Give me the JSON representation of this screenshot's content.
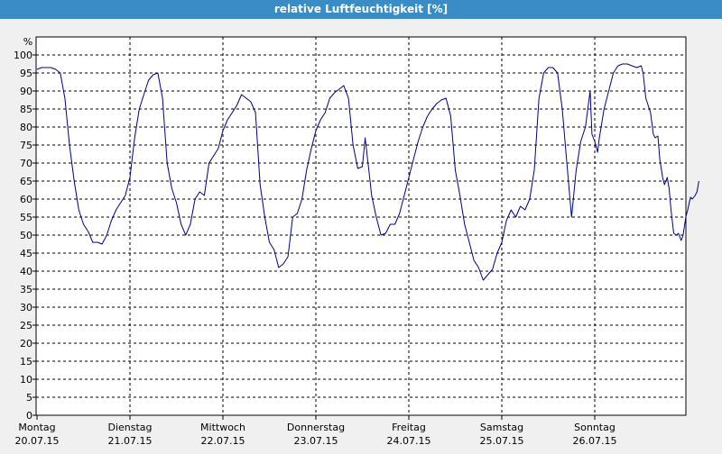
{
  "window": {
    "title": "relative Luftfeuchtigkeit [%]"
  },
  "chart_data": {
    "type": "line",
    "title": "relative Luftfeuchtigkeit [%]",
    "ylabel": "%",
    "xlabel": "",
    "ylim": [
      0,
      105
    ],
    "xlim": [
      0,
      7.05
    ],
    "yticks": [
      0,
      5,
      10,
      15,
      20,
      25,
      30,
      35,
      40,
      45,
      50,
      55,
      60,
      65,
      70,
      75,
      80,
      85,
      90,
      95,
      100
    ],
    "grid": true,
    "line_color": "#00008b",
    "day_ticks": [
      {
        "x": 0,
        "day": "Montag",
        "date": "20.07.15"
      },
      {
        "x": 1,
        "day": "Dienstag",
        "date": "21.07.15"
      },
      {
        "x": 2,
        "day": "Mittwoch",
        "date": "22.07.15"
      },
      {
        "x": 3,
        "day": "Donnerstag",
        "date": "23.07.15"
      },
      {
        "x": 4,
        "day": "Freitag",
        "date": "24.07.15"
      },
      {
        "x": 5,
        "day": "Samstag",
        "date": "25.07.15"
      },
      {
        "x": 6,
        "day": "Sonntag",
        "date": "26.07.15"
      }
    ],
    "series": [
      {
        "values": [
          [
            0.0,
            96
          ],
          [
            0.05,
            96.5
          ],
          [
            0.1,
            96.5
          ],
          [
            0.15,
            96.5
          ],
          [
            0.2,
            96
          ],
          [
            0.25,
            95
          ],
          [
            0.3,
            88
          ],
          [
            0.35,
            75
          ],
          [
            0.4,
            65
          ],
          [
            0.45,
            57
          ],
          [
            0.5,
            53
          ],
          [
            0.55,
            51
          ],
          [
            0.6,
            48
          ],
          [
            0.65,
            48
          ],
          [
            0.7,
            47.5
          ],
          [
            0.75,
            50
          ],
          [
            0.8,
            54
          ],
          [
            0.85,
            57
          ],
          [
            0.9,
            59
          ],
          [
            0.95,
            61
          ],
          [
            1.0,
            66
          ],
          [
            1.05,
            77
          ],
          [
            1.1,
            85
          ],
          [
            1.15,
            89
          ],
          [
            1.2,
            93
          ],
          [
            1.25,
            94.5
          ],
          [
            1.3,
            95
          ],
          [
            1.35,
            88
          ],
          [
            1.4,
            70
          ],
          [
            1.45,
            63
          ],
          [
            1.5,
            59
          ],
          [
            1.55,
            53
          ],
          [
            1.6,
            50
          ],
          [
            1.65,
            53
          ],
          [
            1.7,
            60
          ],
          [
            1.75,
            62
          ],
          [
            1.8,
            61
          ],
          [
            1.85,
            70
          ],
          [
            1.9,
            72
          ],
          [
            1.95,
            74
          ],
          [
            2.0,
            79
          ],
          [
            2.05,
            82
          ],
          [
            2.1,
            84
          ],
          [
            2.15,
            86
          ],
          [
            2.2,
            89
          ],
          [
            2.25,
            88
          ],
          [
            2.3,
            87
          ],
          [
            2.35,
            84
          ],
          [
            2.4,
            64
          ],
          [
            2.45,
            55
          ],
          [
            2.5,
            48
          ],
          [
            2.55,
            46
          ],
          [
            2.6,
            41
          ],
          [
            2.65,
            42
          ],
          [
            2.7,
            44
          ],
          [
            2.75,
            55
          ],
          [
            2.8,
            56
          ],
          [
            2.85,
            60
          ],
          [
            2.9,
            68
          ],
          [
            2.95,
            74
          ],
          [
            3.0,
            79
          ],
          [
            3.05,
            82
          ],
          [
            3.1,
            84
          ],
          [
            3.15,
            88
          ],
          [
            3.2,
            89.5
          ],
          [
            3.25,
            90.5
          ],
          [
            3.3,
            91.5
          ],
          [
            3.35,
            88
          ],
          [
            3.4,
            75
          ],
          [
            3.45,
            68.5
          ],
          [
            3.5,
            69
          ],
          [
            3.53,
            77
          ],
          [
            3.57,
            68
          ],
          [
            3.6,
            61
          ],
          [
            3.65,
            55
          ],
          [
            3.7,
            50
          ],
          [
            3.75,
            50.5
          ],
          [
            3.8,
            53
          ],
          [
            3.85,
            53
          ],
          [
            3.9,
            56
          ],
          [
            3.95,
            61
          ],
          [
            4.0,
            66
          ],
          [
            4.05,
            71
          ],
          [
            4.1,
            76
          ],
          [
            4.15,
            80
          ],
          [
            4.2,
            83
          ],
          [
            4.25,
            85
          ],
          [
            4.3,
            86.5
          ],
          [
            4.35,
            87.5
          ],
          [
            4.4,
            88
          ],
          [
            4.45,
            83
          ],
          [
            4.5,
            68
          ],
          [
            4.55,
            61
          ],
          [
            4.6,
            53
          ],
          [
            4.65,
            48
          ],
          [
            4.7,
            43
          ],
          [
            4.75,
            41
          ],
          [
            4.8,
            37.5
          ],
          [
            4.85,
            39
          ],
          [
            4.9,
            40.5
          ],
          [
            4.95,
            45
          ],
          [
            5.0,
            48
          ],
          [
            5.05,
            54
          ],
          [
            5.1,
            57
          ],
          [
            5.15,
            55
          ],
          [
            5.2,
            58
          ],
          [
            5.25,
            57
          ],
          [
            5.3,
            60
          ],
          [
            5.35,
            68
          ],
          [
            5.4,
            88
          ],
          [
            5.45,
            95
          ],
          [
            5.5,
            96.5
          ],
          [
            5.55,
            96.5
          ],
          [
            5.6,
            95
          ],
          [
            5.65,
            85
          ],
          [
            5.7,
            70
          ],
          [
            5.75,
            55
          ],
          [
            5.8,
            68
          ],
          [
            5.85,
            76
          ],
          [
            5.9,
            80
          ],
          [
            5.95,
            90
          ],
          [
            5.97,
            78
          ],
          [
            6.0,
            76
          ],
          [
            6.03,
            73
          ],
          [
            6.05,
            77
          ],
          [
            6.1,
            85
          ],
          [
            6.15,
            90
          ],
          [
            6.2,
            95
          ],
          [
            6.25,
            97
          ],
          [
            6.3,
            97.5
          ],
          [
            6.35,
            97.5
          ],
          [
            6.4,
            97
          ],
          [
            6.45,
            96.5
          ],
          [
            6.5,
            97
          ],
          [
            6.52,
            95
          ],
          [
            6.55,
            88
          ],
          [
            6.6,
            84
          ],
          [
            6.63,
            78
          ],
          [
            6.65,
            77
          ],
          [
            6.68,
            77.5
          ],
          [
            6.7,
            71
          ],
          [
            6.73,
            66
          ],
          [
            6.75,
            64
          ],
          [
            6.78,
            66
          ],
          [
            6.8,
            63
          ],
          [
            6.82,
            57
          ],
          [
            6.85,
            50.5
          ],
          [
            6.88,
            50
          ],
          [
            6.9,
            50.5
          ],
          [
            6.93,
            48.5
          ],
          [
            6.95,
            50
          ],
          [
            6.98,
            55
          ],
          [
            7.0,
            57
          ],
          [
            7.03,
            60.5
          ],
          [
            7.05,
            60
          ],
          [
            7.08,
            61
          ],
          [
            7.1,
            62
          ],
          [
            7.12,
            65
          ]
        ]
      }
    ]
  }
}
